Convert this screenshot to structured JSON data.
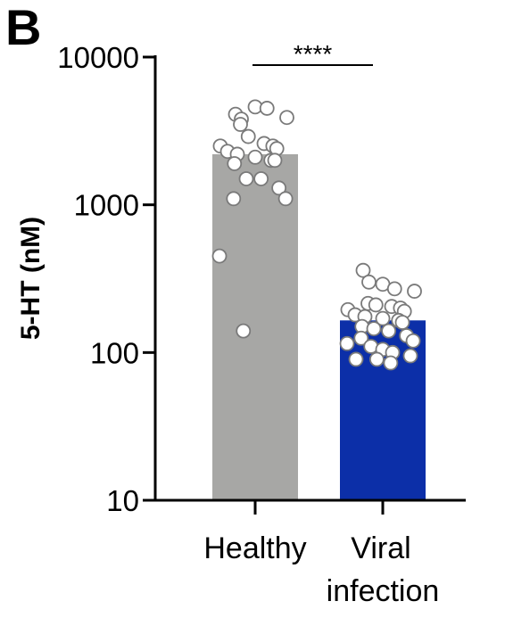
{
  "chart_data": {
    "type": "bar",
    "panel_label": "B",
    "ylabel": "5-HT (nM)",
    "yscale": "log",
    "ylim": [
      10,
      10000
    ],
    "yticks": [
      "10",
      "100",
      "1000",
      "10000"
    ],
    "categories": [
      {
        "lines": [
          "Healthy"
        ],
        "value": 2200,
        "color": "#a7a7a5",
        "points": [
          4100,
          3800,
          4600,
          4500,
          3900,
          3500,
          2900,
          2600,
          2500,
          2500,
          2400,
          2300,
          2200,
          2100,
          2000,
          2000,
          1900,
          1500,
          1500,
          1300,
          1100,
          1100,
          450,
          140
        ]
      },
      {
        "lines": [
          "Viral",
          "infection"
        ],
        "value": 165,
        "color": "#0c2fa8",
        "points": [
          360,
          300,
          290,
          270,
          260,
          215,
          210,
          205,
          200,
          195,
          190,
          180,
          175,
          170,
          165,
          160,
          150,
          145,
          140,
          130,
          125,
          120,
          115,
          110,
          105,
          100,
          95,
          90,
          90,
          85
        ]
      }
    ],
    "significance": {
      "label": "****",
      "between": [
        0,
        1
      ]
    }
  }
}
